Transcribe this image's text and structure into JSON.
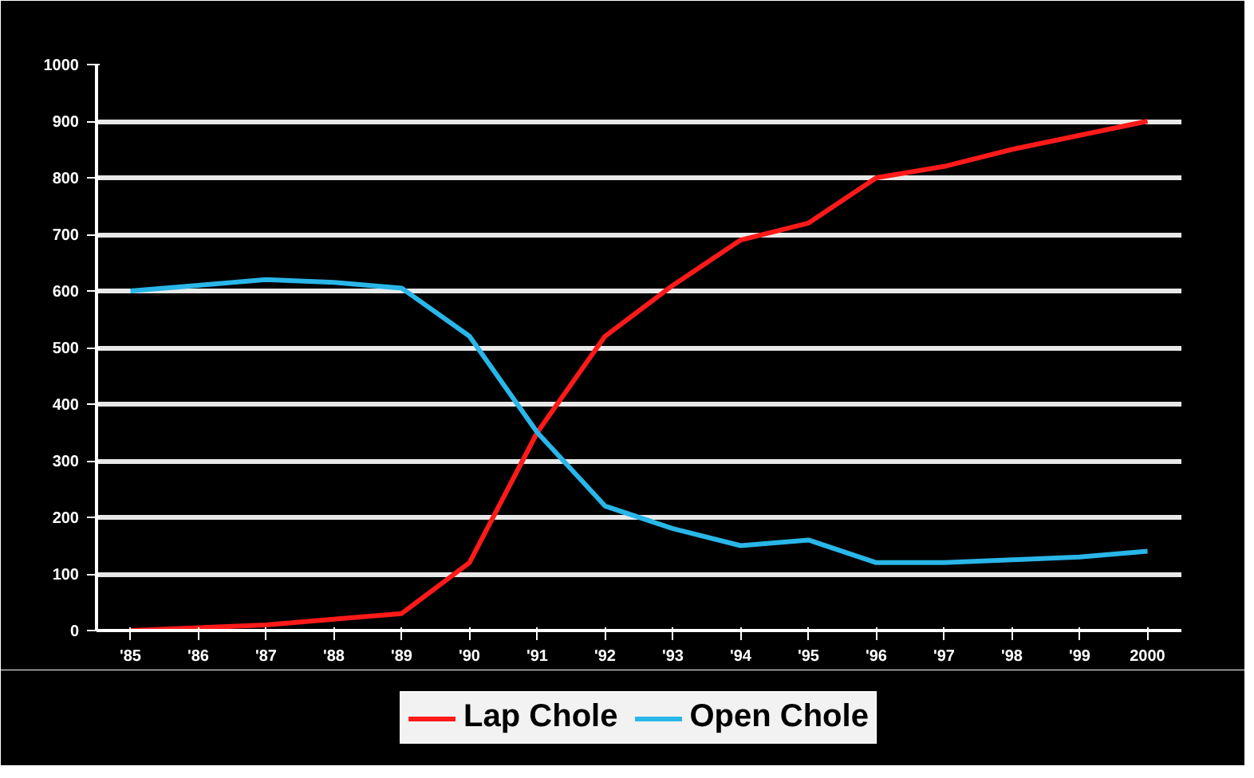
{
  "chart_data": {
    "type": "line",
    "categories": [
      "'85",
      "'86",
      "'87",
      "'88",
      "'89",
      "'90",
      "'91",
      "'92",
      "'93",
      "'94",
      "'95",
      "'96",
      "'97",
      "'98",
      "'99",
      "2000"
    ],
    "series": [
      {
        "name": "Lap Chole",
        "color": "#ff1a1a",
        "values": [
          0,
          5,
          10,
          20,
          30,
          120,
          350,
          520,
          610,
          690,
          720,
          800,
          820,
          850,
          875,
          900
        ]
      },
      {
        "name": "Open Chole",
        "color": "#29b6e8",
        "values": [
          600,
          610,
          620,
          615,
          605,
          520,
          350,
          220,
          180,
          150,
          160,
          120,
          120,
          125,
          130,
          140
        ]
      }
    ],
    "ylim": [
      0,
      1000
    ],
    "yticks": [
      0,
      100,
      200,
      300,
      400,
      500,
      600,
      700,
      800,
      900,
      1000
    ],
    "grid": "y",
    "legend": "bottom",
    "line_style": "solid",
    "marker": "none"
  }
}
